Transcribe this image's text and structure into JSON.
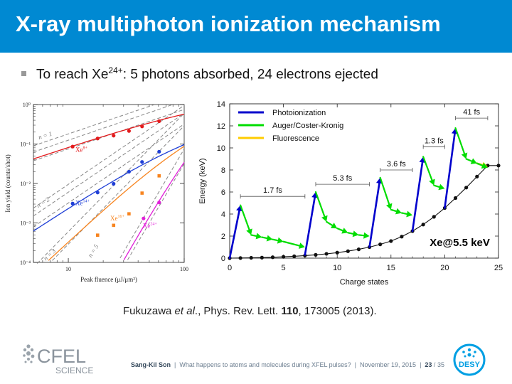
{
  "slide": {
    "title": "X-ray multiphoton ionization mechanism",
    "bullet": {
      "prefix": "To reach Xe",
      "superscript": "24+",
      "suffix": ": 5 photons absorbed, 24 electrons ejected"
    },
    "citation": {
      "authors": "Fukuzawa ",
      "etal": "et al",
      "journal": "., Phys. Rev. Lett. ",
      "volume": "110",
      "rest": ", 173005 (2013)."
    },
    "footer": {
      "author": "Sang-Kil Son",
      "talk": "What happens to atoms and molecules during XFEL pulses?",
      "date": "November 19, 2015",
      "page": "23",
      "total": "35"
    },
    "logos": {
      "cfel_top": "CFEL",
      "cfel_bottom": "SCIENCE",
      "desy": "DESY"
    },
    "colors": {
      "title_bar": "#0089d2",
      "photoionization": "#0000cc",
      "auger": "#00dd00",
      "fluorescence": "#ffcc00"
    }
  },
  "chart_data": [
    {
      "type": "scatter",
      "xlabel": "Peak fluence (μJ/μm²)",
      "ylabel": "Ion yield (counts/shot)",
      "xscale": "log",
      "yscale": "log",
      "xlim": [
        5,
        100
      ],
      "ylim": [
        0.0001,
        1
      ],
      "xtick_labels": [
        "10",
        "100"
      ],
      "ytick_labels": [
        "10⁰",
        "10⁻¹",
        "10⁻²",
        "10⁻³",
        "10⁻⁴"
      ],
      "annotations": [
        "n = 1",
        "n = 2",
        "n = 3",
        "n = 5"
      ],
      "series": [
        {
          "name": "Xe8+",
          "color": "#e31a1c",
          "x": [
            10.9,
            17.9,
            24.6,
            33.4,
            43.3,
            60.8
          ],
          "y": [
            0.086,
            0.138,
            0.163,
            0.214,
            0.279,
            0.379
          ]
        },
        {
          "name": "Xe14+",
          "color": "#1f3fd6",
          "x": [
            10.9,
            17.9,
            24.6,
            33.4,
            43.3,
            60.8
          ],
          "y": [
            0.0031,
            0.0059,
            0.0098,
            0.0199,
            0.0351,
            0.0638
          ]
        },
        {
          "name": "Xe16+",
          "color": "#f7841f",
          "x": [
            17.9,
            24.6,
            33.4,
            43.3,
            60.8
          ],
          "y": [
            0.00049,
            0.00087,
            0.0017,
            0.0057,
            0.0156
          ]
        },
        {
          "name": "Xe24+",
          "color": "#e020d8",
          "x": [
            44.6,
            60.8
          ],
          "y": [
            0.0013,
            0.0033
          ]
        }
      ]
    },
    {
      "type": "line",
      "xlabel": "Charge states",
      "ylabel": "Energy (keV)",
      "xlim": [
        0,
        25
      ],
      "ylim": [
        0,
        14
      ],
      "xticks": [
        0,
        5,
        10,
        15,
        20,
        25
      ],
      "yticks": [
        0,
        2,
        4,
        6,
        8,
        10,
        12,
        14
      ],
      "legend": {
        "position": "top-left",
        "entries": [
          "Photoionization",
          "Auger/Coster-Kronig",
          "Fluorescence"
        ]
      },
      "label": "Xe@5.5 keV",
      "ground_curve": {
        "x": [
          0,
          1,
          2,
          3,
          4,
          5,
          6,
          7,
          8,
          9,
          10,
          11,
          12,
          13,
          14,
          15,
          16,
          17,
          18,
          19,
          20,
          21,
          22,
          23,
          24,
          25
        ],
        "y": [
          0,
          0.01,
          0.03,
          0.05,
          0.08,
          0.12,
          0.17,
          0.23,
          0.3,
          0.39,
          0.5,
          0.63,
          0.8,
          1.0,
          1.25,
          1.55,
          1.95,
          2.45,
          3.05,
          3.75,
          4.55,
          5.45,
          6.4,
          7.4,
          8.4,
          8.4
        ]
      },
      "steps": [
        {
          "type": "photo",
          "x0": 0,
          "y0": 0,
          "x1": 1,
          "y1": 4.8
        },
        {
          "type": "auger",
          "x0": 1,
          "y0": 4.8,
          "x1": 2,
          "y1": 2.1
        },
        {
          "type": "auger",
          "x0": 2,
          "y0": 2.1,
          "x1": 3,
          "y1": 1.9
        },
        {
          "type": "auger",
          "x0": 3,
          "y0": 1.9,
          "x1": 4,
          "y1": 1.7
        },
        {
          "type": "auger",
          "x0": 4,
          "y0": 1.7,
          "x1": 5,
          "y1": 1.5
        },
        {
          "type": "auger",
          "x0": 5,
          "y0": 1.5,
          "x1": 7,
          "y1": 1.0
        },
        {
          "type": "photo",
          "x0": 7,
          "y0": 0.3,
          "x1": 8,
          "y1": 6.0
        },
        {
          "type": "auger",
          "x0": 8,
          "y0": 6.0,
          "x1": 9,
          "y1": 3.3
        },
        {
          "type": "auger",
          "x0": 9,
          "y0": 3.3,
          "x1": 10,
          "y1": 2.7
        },
        {
          "type": "auger",
          "x0": 10,
          "y0": 2.7,
          "x1": 11,
          "y1": 2.3
        },
        {
          "type": "auger",
          "x0": 11,
          "y0": 2.3,
          "x1": 12,
          "y1": 2.1
        },
        {
          "type": "auger",
          "x0": 12,
          "y0": 2.1,
          "x1": 13,
          "y1": 2.0
        },
        {
          "type": "photo",
          "x0": 13,
          "y0": 1.0,
          "x1": 14,
          "y1": 7.3
        },
        {
          "type": "auger",
          "x0": 14,
          "y0": 7.3,
          "x1": 15,
          "y1": 4.4
        },
        {
          "type": "auger",
          "x0": 15,
          "y0": 4.4,
          "x1": 16,
          "y1": 4.1
        },
        {
          "type": "auger",
          "x0": 16,
          "y0": 4.1,
          "x1": 17,
          "y1": 3.9
        },
        {
          "type": "photo",
          "x0": 17,
          "y0": 2.45,
          "x1": 18,
          "y1": 9.2
        },
        {
          "type": "auger",
          "x0": 18,
          "y0": 9.2,
          "x1": 19,
          "y1": 6.6
        },
        {
          "type": "auger",
          "x0": 19,
          "y0": 6.6,
          "x1": 20,
          "y1": 6.3
        },
        {
          "type": "photo",
          "x0": 20,
          "y0": 4.55,
          "x1": 21,
          "y1": 11.8
        },
        {
          "type": "auger",
          "x0": 21,
          "y0": 11.8,
          "x1": 22,
          "y1": 9.0
        },
        {
          "type": "auger",
          "x0": 22,
          "y0": 9.0,
          "x1": 23,
          "y1": 8.6
        },
        {
          "type": "fluo",
          "x0": 23,
          "y0": 8.6,
          "x1": 24,
          "y1": 8.3
        },
        {
          "type": "auger",
          "x0": 23,
          "y0": 8.6,
          "x1": 24,
          "y1": 8.2
        }
      ],
      "time_labels": [
        {
          "text": "1.7 fs",
          "x0": 1,
          "x1": 7,
          "y": 5.6
        },
        {
          "text": "5.3 fs",
          "x0": 8,
          "x1": 13,
          "y": 6.7
        },
        {
          "text": "3.6 fs",
          "x0": 14,
          "x1": 17,
          "y": 8.0
        },
        {
          "text": "1.3 fs",
          "x0": 18,
          "x1": 20,
          "y": 10.1
        },
        {
          "text": "41 fs",
          "x0": 21,
          "x1": 24,
          "y": 12.7
        }
      ]
    }
  ]
}
